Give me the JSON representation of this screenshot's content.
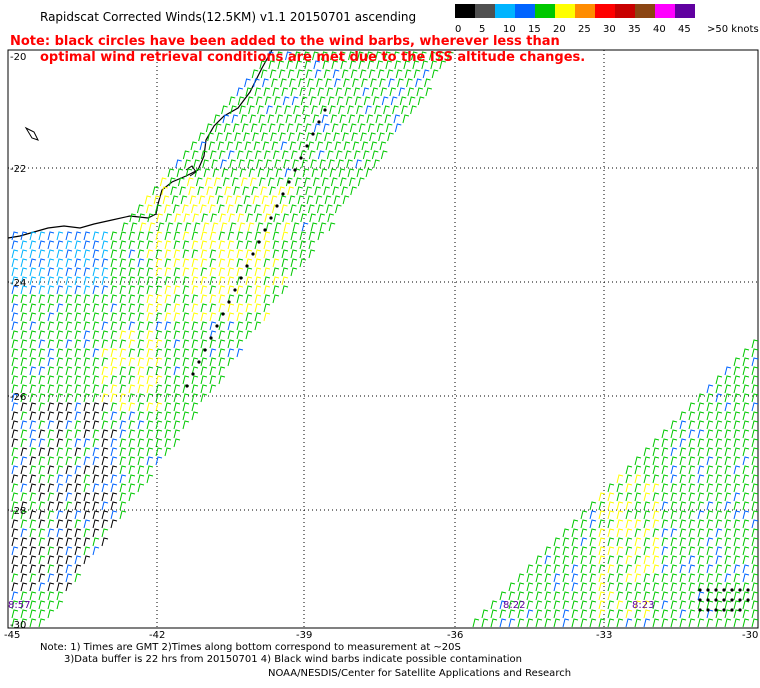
{
  "title": "Rapidscat Corrected Winds(12.5KM) v1.1 20150701 ascending",
  "legend": {
    "labels": [
      "0",
      "5",
      "10",
      "15",
      "20",
      "25",
      "30",
      "35",
      "40",
      "45",
      ">50 knots"
    ],
    "colors": [
      "#000000",
      "#505050",
      "#00b4ff",
      "#0064ff",
      "#00c800",
      "#ffff00",
      "#ff8c00",
      "#ff0000",
      "#c80000",
      "#8b4513",
      "#ff00ff",
      "#6000a0"
    ]
  },
  "note": {
    "line1": "Note: black circles have been added to the wind barbs, wherever less than",
    "line2": "optimal wind retrieval conditions are met due to the ISS altitude changes."
  },
  "axes": {
    "lat_labels": [
      "-20",
      "-22",
      "-24",
      "-26",
      "-28",
      "-30"
    ],
    "lon_labels": [
      "-45",
      "-42",
      "-39",
      "-36",
      "-33",
      "-30"
    ]
  },
  "time_labels": [
    "8:57",
    "8:22",
    "8:23"
  ],
  "footer": {
    "line1": "Note: 1) Times are GMT 2)Times along bottom correspond to measurement at ~20S",
    "line2": "3)Data buffer is 22 hrs from 20150701 4) Black wind barbs indicate possible contamination",
    "line3": "NOAA/NESDIS/Center for Satellite Applications and Research"
  }
}
